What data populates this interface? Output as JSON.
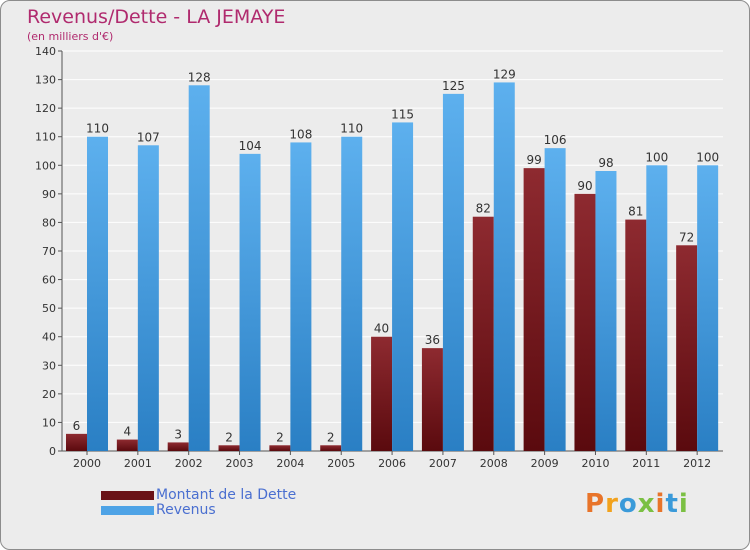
{
  "header": {
    "title": "Revenus/Dette - LA JEMAYE",
    "subtitle": "(en milliers d'€)"
  },
  "legend": {
    "items": [
      {
        "label": "Montant de la Dette",
        "color": "#7a1a1f"
      },
      {
        "label": "Revenus",
        "color": "#4ea3e6"
      }
    ]
  },
  "logo": {
    "text": "Proxiti",
    "letters": [
      {
        "ch": "P",
        "color": "#e8742a"
      },
      {
        "ch": "r",
        "color": "#f2a21d"
      },
      {
        "ch": "o",
        "color": "#3a9ad9"
      },
      {
        "ch": "x",
        "color": "#7bc043"
      },
      {
        "ch": "i",
        "color": "#e8742a"
      },
      {
        "ch": "t",
        "color": "#3a9ad9"
      },
      {
        "ch": "i",
        "color": "#7bc043"
      }
    ]
  },
  "chart_data": {
    "type": "bar",
    "title": "Revenus/Dette - LA JEMAYE",
    "subtitle": "(en milliers d'€)",
    "categories": [
      "2000",
      "2001",
      "2002",
      "2003",
      "2004",
      "2005",
      "2006",
      "2007",
      "2008",
      "2009",
      "2010",
      "2011",
      "2012"
    ],
    "series": [
      {
        "name": "Montant de la Dette",
        "color": "#7a1a1f",
        "values": [
          6,
          4,
          3,
          2,
          2,
          2,
          40,
          36,
          82,
          99,
          90,
          81,
          72
        ]
      },
      {
        "name": "Revenus",
        "color": "#4ea3e6",
        "values": [
          110,
          107,
          128,
          104,
          108,
          110,
          115,
          125,
          129,
          106,
          98,
          100,
          100
        ]
      }
    ],
    "ylim": [
      0,
      140
    ],
    "yticks": [
      0,
      10,
      20,
      30,
      40,
      50,
      60,
      70,
      80,
      90,
      100,
      110,
      120,
      130,
      140
    ],
    "grid": true,
    "legend_position": "bottom-left"
  }
}
